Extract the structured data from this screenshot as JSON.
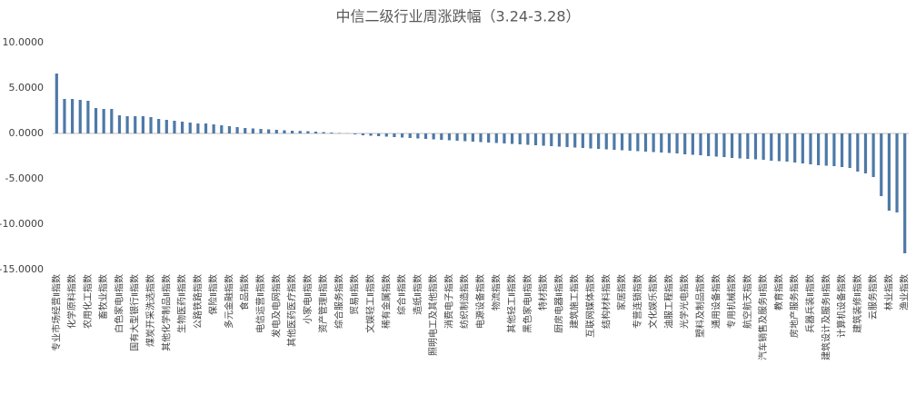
{
  "chart_data": {
    "type": "bar",
    "title": "中信二级行业周涨跌幅（3.24-3.28）",
    "categories": [
      "专业市场经营Ⅱ指数",
      null,
      "化学原料指数",
      null,
      "农用化工指数",
      null,
      "畜牧业指数",
      null,
      "白色家电Ⅱ指数",
      null,
      "国有大型银行Ⅱ指数",
      null,
      "煤炭开采洗选指数",
      null,
      "其他化学制品Ⅱ指数",
      null,
      "生物医药Ⅱ指数",
      null,
      "公路铁路指数",
      null,
      "保险Ⅱ指数",
      null,
      "多元金融指数",
      null,
      "食品指数",
      null,
      "电信运营Ⅱ指数",
      null,
      "发电及电网指数",
      null,
      "其他医药医疗指数",
      null,
      "小家电Ⅱ指数",
      null,
      "资产管理Ⅱ指数",
      null,
      "综合服务指数",
      null,
      "贸易Ⅱ指数",
      null,
      "文娱轻工Ⅱ指数",
      null,
      "稀有金属指数",
      null,
      "综合Ⅱ指数",
      null,
      "造纸Ⅱ指数",
      null,
      "照明电工及其他指数",
      null,
      "消费电子指数",
      null,
      "纺织制造指数",
      null,
      "电源设备指数",
      null,
      "物流指数",
      null,
      "其他轻工Ⅱ指数",
      null,
      "黑色家电Ⅱ指数",
      null,
      "特材指数",
      null,
      "厨房电器Ⅱ指数",
      null,
      "建筑施工指数",
      null,
      "互联网媒体指数",
      null,
      "结构材料指数",
      null,
      "家居指数",
      null,
      "专营连锁指数",
      null,
      "文化娱乐指数",
      null,
      "油服工程指数",
      null,
      "光学光电指数",
      null,
      "塑料及制品指数",
      null,
      "通用设备指数",
      null,
      "专用机械指数",
      null,
      "航空航天指数",
      null,
      "汽车销售及服务Ⅱ指数",
      null,
      "教育指数",
      null,
      "房地产服务指数",
      null,
      "兵器兵装Ⅱ指数",
      null,
      "建筑设计及服务Ⅱ指数",
      null,
      "计算机设备指数",
      null,
      "建筑装修Ⅱ指数",
      null,
      "云服务指数",
      null,
      "林业指数",
      null,
      "渔业指数"
    ],
    "values": [
      6.6,
      3.8,
      3.8,
      3.7,
      3.6,
      2.8,
      2.7,
      2.7,
      2.0,
      1.9,
      1.9,
      1.9,
      1.8,
      1.6,
      1.5,
      1.4,
      1.3,
      1.2,
      1.1,
      1.1,
      1.0,
      0.9,
      0.8,
      0.7,
      0.6,
      0.55,
      0.5,
      0.45,
      0.4,
      0.35,
      0.3,
      0.28,
      0.25,
      0.2,
      0.15,
      0.1,
      0.05,
      0.02,
      -0.1,
      -0.2,
      -0.25,
      -0.3,
      -0.35,
      -0.4,
      -0.45,
      -0.5,
      -0.55,
      -0.6,
      -0.65,
      -0.7,
      -0.75,
      -0.8,
      -0.85,
      -0.9,
      -0.95,
      -1.0,
      -1.05,
      -1.1,
      -1.15,
      -1.2,
      -1.25,
      -1.3,
      -1.35,
      -1.4,
      -1.45,
      -1.5,
      -1.55,
      -1.6,
      -1.65,
      -1.7,
      -1.75,
      -1.8,
      -1.85,
      -1.9,
      -1.95,
      -2.0,
      -2.05,
      -2.1,
      -2.15,
      -2.2,
      -2.3,
      -2.35,
      -2.4,
      -2.5,
      -2.55,
      -2.6,
      -2.7,
      -2.75,
      -2.8,
      -2.85,
      -2.9,
      -3.0,
      -3.05,
      -3.1,
      -3.2,
      -3.3,
      -3.4,
      -3.5,
      -3.55,
      -3.6,
      -3.7,
      -3.8,
      -4.2,
      -4.4,
      -4.8,
      -6.9,
      -8.5,
      -8.7,
      -13.2
    ],
    "color": "#4e79a7",
    "ylim": [
      -15,
      10
    ],
    "yticks": [
      {
        "value": -15,
        "label": "-15.0000"
      },
      {
        "value": -10,
        "label": "-10.0000"
      },
      {
        "value": -5,
        "label": "-5.0000"
      },
      {
        "value": 0,
        "label": "0.0000"
      },
      {
        "value": 5,
        "label": "5.0000"
      },
      {
        "value": 10,
        "label": "10.0000"
      }
    ],
    "grid": false
  }
}
